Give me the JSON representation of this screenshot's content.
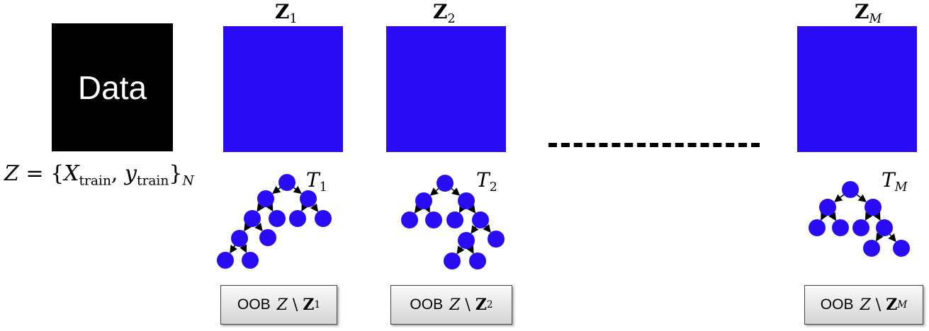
{
  "data_block": {
    "label": "Data"
  },
  "formula": {
    "lhs": "Z",
    "eq": "=",
    "open": "{",
    "x": "X",
    "x_sub": "train",
    "comma": ",",
    "y": "y",
    "y_sub": "train",
    "close": "}",
    "outer_sub": "N"
  },
  "samples": [
    {
      "symbol": "Z",
      "sub": "1",
      "tree_symbol": "T",
      "tree_sub": "1",
      "oob_word": "OOB",
      "oob_set": "Z",
      "oob_minus": "\\",
      "oob_sample": "Z",
      "oob_sub": "1"
    },
    {
      "symbol": "Z",
      "sub": "2",
      "tree_symbol": "T",
      "tree_sub": "2",
      "oob_word": "OOB",
      "oob_set": "Z",
      "oob_minus": "\\",
      "oob_sample": "Z",
      "oob_sub": "2"
    },
    {
      "symbol": "Z",
      "sub": "M",
      "tree_symbol": "T",
      "tree_sub": "M",
      "oob_word": "OOB",
      "oob_set": "Z",
      "oob_minus": "\\",
      "oob_sample": "Z",
      "oob_sub": "M"
    }
  ],
  "colors": {
    "sample_fill": "#2a0bf5",
    "node_fill": "#2a0bf5",
    "data_fill": "#000000",
    "edge": "#000000"
  }
}
